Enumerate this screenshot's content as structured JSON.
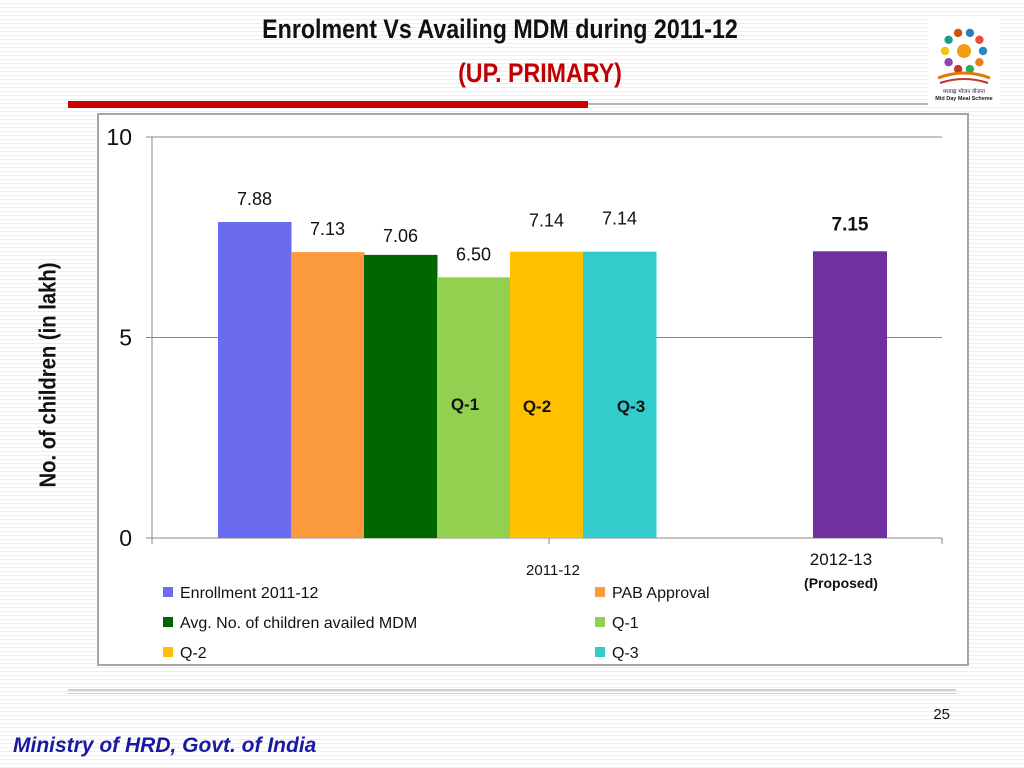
{
  "slide": {
    "title": "Enrolment Vs Availing MDM during  2011-12",
    "subtitle": "(UP. PRIMARY)",
    "page_number": "25",
    "footer": "Ministry of HRD, Govt. of India",
    "logo": {
      "text_line1": "मध्याह्न भोजन योजना",
      "text_line2": "Mid Day Meal Scheme"
    }
  },
  "chart_data": {
    "type": "bar",
    "title": "",
    "ylabel": "No. of children (in lakh)",
    "ylim": [
      0,
      10
    ],
    "yticks": [
      "0",
      "5",
      "10"
    ],
    "grid": true,
    "legend_position": "bottom",
    "categories": [
      "2011-12",
      "2012-13"
    ],
    "category_notes": [
      "",
      "(Proposed)"
    ],
    "series": [
      {
        "name": "Enrollment 2011-12",
        "color": "#6b6bf0",
        "group": 0,
        "value": 7.88,
        "label": "7.88"
      },
      {
        "name": "PAB Approval",
        "color": "#fb9a3c",
        "group": 0,
        "value": 7.13,
        "label": "7.13"
      },
      {
        "name": "Avg. No. of children availed MDM",
        "color": "#006600",
        "group": 0,
        "value": 7.06,
        "label": "7.06"
      },
      {
        "name": "Q-1",
        "color": "#92d050",
        "group": 0,
        "value": 6.5,
        "label": "6.50",
        "bar_text": "Q-1"
      },
      {
        "name": "Q-2",
        "color": "#ffc000",
        "group": 0,
        "value": 7.14,
        "label": "7.14",
        "bar_text": "Q-2"
      },
      {
        "name": "Q-3",
        "color": "#33cccc",
        "group": 0,
        "value": 7.14,
        "label": "7.14",
        "bar_text": "Q-3"
      }
    ],
    "extra_bars": [
      {
        "category": "2012-13",
        "value": 7.15,
        "label": "7.15",
        "color": "#7030a0"
      }
    ]
  }
}
